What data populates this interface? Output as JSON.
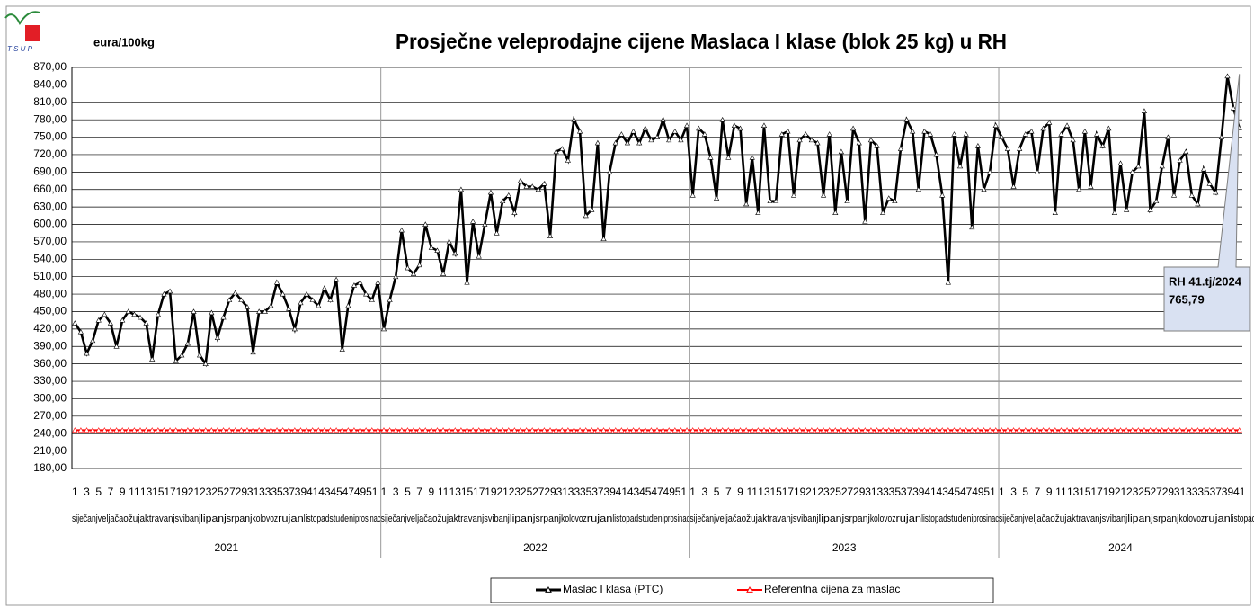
{
  "chart_data": {
    "type": "line",
    "title": "Prosječne veleprodajne cijene Maslaca I klase (blok 25 kg) u RH",
    "y_label": "eura/100kg",
    "logo": "T S U P",
    "categories": [
      "1",
      null,
      "3",
      null,
      "5",
      null,
      "7",
      null,
      "9",
      null,
      "11",
      null,
      "13",
      null,
      "15",
      null,
      "17",
      null,
      "19",
      null,
      "21",
      null,
      "23",
      null,
      "25",
      null,
      "27",
      null,
      "29",
      null,
      "31",
      null,
      "33",
      null,
      "35",
      null,
      "37",
      null,
      "39",
      null,
      "41",
      null,
      "43",
      null,
      "45",
      null,
      "47",
      null,
      "49",
      null,
      "51",
      null,
      "1",
      null,
      "3",
      null,
      "5",
      null,
      "7",
      null,
      "9",
      null,
      "11",
      null,
      "13",
      null,
      "15",
      null,
      "17",
      null,
      "19",
      null,
      "21",
      null,
      "23",
      null,
      "25",
      null,
      "27",
      null,
      "29",
      null,
      "31",
      null,
      "33",
      null,
      "35",
      null,
      "37",
      null,
      "39",
      null,
      "41",
      null,
      "43",
      null,
      "45",
      null,
      "47",
      null,
      "49",
      null,
      "51",
      null,
      "1",
      null,
      "3",
      null,
      "5",
      null,
      "7",
      null,
      "9",
      null,
      "11",
      null,
      "13",
      null,
      "15",
      null,
      "17",
      null,
      "19",
      null,
      "21",
      null,
      "23",
      null,
      "25",
      null,
      "27",
      null,
      "29",
      null,
      "31",
      null,
      "33",
      null,
      "35",
      null,
      "37",
      null,
      "39",
      null,
      "41",
      null,
      "43",
      null,
      "45",
      null,
      "47",
      null,
      "49",
      null,
      "51",
      null,
      "1",
      null,
      "3",
      null,
      "5",
      null,
      "7",
      null,
      "9",
      null,
      "11",
      null,
      "13",
      null,
      "15",
      null,
      "17",
      null,
      "19",
      null,
      "21",
      null,
      "23",
      null,
      "25",
      null,
      "27",
      null,
      "29",
      null,
      "31",
      null,
      "33",
      null,
      "35",
      null,
      "37",
      null,
      "39",
      null,
      "41"
    ],
    "years": [
      {
        "label": "2021",
        "months": [
          "siječanj",
          "veljača",
          "ožujak",
          "travanj",
          "svibanj",
          "lipanj",
          "srpanj",
          "kolovoz",
          "rujan",
          "listopad",
          "studeni",
          "prosinac"
        ]
      },
      {
        "label": "2022",
        "months": [
          "siječanj",
          "veljača",
          "ožujak",
          "travanj",
          "svibanj",
          "lipanj",
          "srpanj",
          "kolovoz",
          "rujan",
          "listopad",
          "studeni",
          "prosinac"
        ]
      },
      {
        "label": "2023",
        "months": [
          "siječanj",
          "veljača",
          "ožujak",
          "travanj",
          "svibanj",
          "lipanj",
          "srpanj",
          "kolovoz",
          "rujan",
          "listopad",
          "studeni",
          "prosinac"
        ]
      },
      {
        "label": "2024",
        "months": [
          "siječanj",
          "veljača",
          "ožujak",
          "travanj",
          "svibanj",
          "lipanj",
          "srpanj",
          "kolovoz",
          "rujan",
          "listopad"
        ]
      }
    ],
    "series": [
      {
        "name": "Maslac I klasa (PTC)",
        "color": "#000000",
        "marker_fill": "#ffffff",
        "values": [
          430,
          415,
          378,
          400,
          435,
          445,
          430,
          390,
          435,
          450,
          445,
          440,
          430,
          368,
          445,
          480,
          485,
          365,
          375,
          395,
          450,
          375,
          360,
          448,
          405,
          440,
          470,
          482,
          470,
          458,
          380,
          450,
          450,
          460,
          500,
          480,
          455,
          420,
          465,
          480,
          470,
          460,
          490,
          470,
          505,
          385,
          460,
          495,
          500,
          480,
          470,
          500,
          420,
          470,
          510,
          590,
          525,
          515,
          530,
          600,
          560,
          555,
          515,
          570,
          550,
          660,
          500,
          605,
          545,
          600,
          655,
          585,
          640,
          650,
          620,
          675,
          665,
          665,
          660,
          670,
          580,
          725,
          730,
          710,
          780,
          760,
          615,
          625,
          740,
          575,
          690,
          740,
          755,
          740,
          760,
          740,
          765,
          745,
          750,
          780,
          745,
          760,
          745,
          770,
          650,
          765,
          755,
          715,
          645,
          780,
          715,
          770,
          765,
          635,
          715,
          620,
          770,
          640,
          640,
          755,
          760,
          650,
          745,
          755,
          745,
          740,
          650,
          755,
          620,
          725,
          640,
          765,
          740,
          605,
          745,
          735,
          620,
          645,
          640,
          730,
          780,
          760,
          660,
          760,
          755,
          720,
          650,
          500,
          755,
          700,
          755,
          595,
          735,
          660,
          690,
          770,
          750,
          730,
          665,
          730,
          755,
          760,
          690,
          765,
          775,
          620,
          755,
          770,
          745,
          660,
          760,
          665,
          755,
          735,
          765,
          620,
          705,
          625,
          690,
          700,
          795,
          625,
          640,
          700,
          750,
          650,
          710,
          725,
          650,
          635,
          695,
          670,
          655,
          750,
          855,
          800,
          765.79
        ]
      },
      {
        "name": "Referentna cijena za maslac",
        "color": "#ff0000",
        "marker_fill": "#ffffff",
        "values": [
          246,
          246,
          246,
          246,
          246,
          246,
          246,
          246,
          246,
          246,
          246,
          246,
          246,
          246,
          246,
          246,
          246,
          246,
          246,
          246,
          246,
          246,
          246,
          246,
          246,
          246,
          246,
          246,
          246,
          246,
          246,
          246,
          246,
          246,
          246,
          246,
          246,
          246,
          246,
          246,
          246,
          246,
          246,
          246,
          246,
          246,
          246,
          246,
          246,
          246,
          246,
          246,
          246,
          246,
          246,
          246,
          246,
          246,
          246,
          246,
          246,
          246,
          246,
          246,
          246,
          246,
          246,
          246,
          246,
          246,
          246,
          246,
          246,
          246,
          246,
          246,
          246,
          246,
          246,
          246,
          246,
          246,
          246,
          246,
          246,
          246,
          246,
          246,
          246,
          246,
          246,
          246,
          246,
          246,
          246,
          246,
          246,
          246,
          246,
          246,
          246,
          246,
          246,
          246,
          246,
          246,
          246,
          246,
          246,
          246,
          246,
          246,
          246,
          246,
          246,
          246,
          246,
          246,
          246,
          246,
          246,
          246,
          246,
          246,
          246,
          246,
          246,
          246,
          246,
          246,
          246,
          246,
          246,
          246,
          246,
          246,
          246,
          246,
          246,
          246,
          246,
          246,
          246,
          246,
          246,
          246,
          246,
          246,
          246,
          246,
          246,
          246,
          246,
          246,
          246,
          246,
          246,
          246,
          246,
          246,
          246,
          246,
          246,
          246,
          246,
          246,
          246,
          246,
          246,
          246,
          246,
          246,
          246,
          246,
          246,
          246,
          246,
          246,
          246,
          246,
          246,
          246,
          246,
          246,
          246,
          246,
          246,
          246,
          246,
          246,
          246,
          246,
          246,
          246,
          246,
          246,
          246
        ]
      }
    ],
    "annotation": {
      "label": "RH 41.tj/2024",
      "value_label": "765,79",
      "fill": "#d9e1f2"
    },
    "ylim": [
      180,
      870
    ],
    "yticks": [
      {
        "value": 180,
        "label": "180,00"
      },
      {
        "value": 210,
        "label": "210,00"
      },
      {
        "value": 240,
        "label": "240,00"
      },
      {
        "value": 270,
        "label": "270,00"
      },
      {
        "value": 300,
        "label": "300,00"
      },
      {
        "value": 330,
        "label": "330,00"
      },
      {
        "value": 360,
        "label": "360,00"
      },
      {
        "value": 390,
        "label": "390,00"
      },
      {
        "value": 420,
        "label": "420,00"
      },
      {
        "value": 450,
        "label": "450,00"
      },
      {
        "value": 480,
        "label": "480,00"
      },
      {
        "value": 510,
        "label": "510,00"
      },
      {
        "value": 540,
        "label": "540,00"
      },
      {
        "value": 570,
        "label": "570,00"
      },
      {
        "value": 600,
        "label": "600,00"
      },
      {
        "value": 630,
        "label": "630,00"
      },
      {
        "value": 660,
        "label": "660,00"
      },
      {
        "value": 690,
        "label": "690,00"
      },
      {
        "value": 720,
        "label": "720,00"
      },
      {
        "value": 750,
        "label": "750,00"
      },
      {
        "value": 780,
        "label": "780,00"
      },
      {
        "value": 810,
        "label": "810,00"
      },
      {
        "value": 840,
        "label": "840,00"
      },
      {
        "value": 870,
        "label": "870,00"
      }
    ],
    "grid": true,
    "legend": "bottom"
  }
}
